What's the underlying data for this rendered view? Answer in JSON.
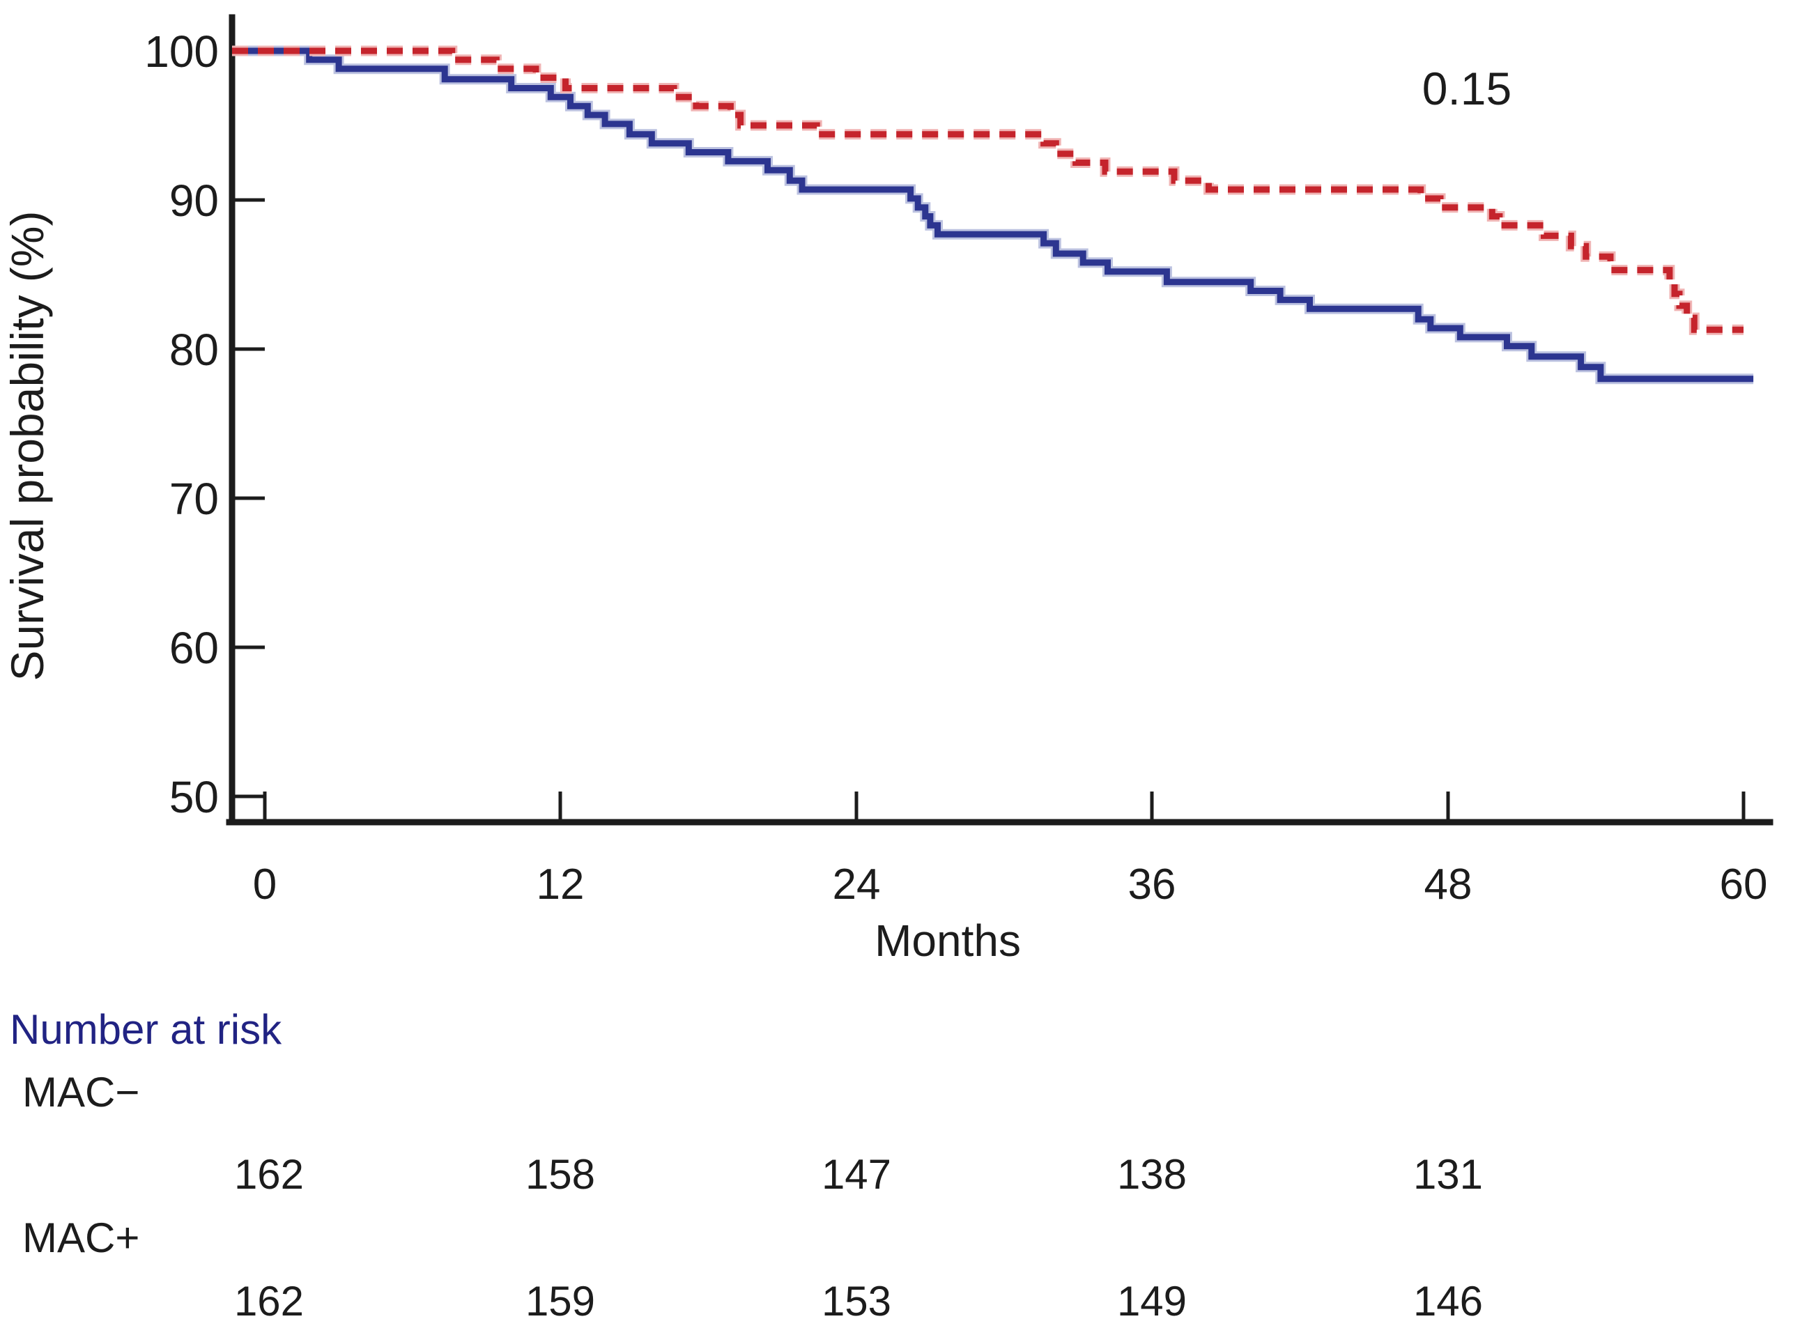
{
  "annotation": {
    "p_value": "0.15"
  },
  "y_axis": {
    "label": "Survival probability (%)",
    "ticks": [
      "100",
      "90",
      "80",
      "70",
      "60",
      "50"
    ]
  },
  "x_axis": {
    "label": "Months",
    "ticks": [
      "0",
      "12",
      "24",
      "36",
      "48",
      "60"
    ]
  },
  "risk_table": {
    "title": "Number at risk",
    "timepoints": [
      0,
      12,
      24,
      36,
      48
    ],
    "groups": [
      {
        "label": "MAC−",
        "values": [
          "162",
          "158",
          "147",
          "138",
          "131"
        ]
      },
      {
        "label": "MAC+",
        "values": [
          "162",
          "159",
          "153",
          "149",
          "146"
        ]
      }
    ]
  },
  "colors": {
    "mac_minus_curve": "#2c3590",
    "mac_plus_curve": "#c5242c",
    "risk_title_text": "#212383",
    "axis_text": "#1c1c1c"
  },
  "chart_data": {
    "type": "line",
    "subtype": "kaplan-meier-step",
    "title": "",
    "xlabel": "Months",
    "ylabel": "Survival probability (%)",
    "xlim": [
      0,
      60
    ],
    "ylim": [
      50,
      100
    ],
    "x_ticks": [
      0,
      12,
      24,
      36,
      48,
      60
    ],
    "y_ticks": [
      100,
      90,
      80,
      70,
      60,
      50
    ],
    "annotation": "0.15",
    "legend_position": "none",
    "grid": false,
    "series": [
      {
        "name": "MAC−",
        "style": "solid",
        "color": "#2c3590",
        "start": [
          0,
          100
        ],
        "end_month": 60.4,
        "drops": [
          [
            1.8,
            99.4
          ],
          [
            3.0,
            98.8
          ],
          [
            7.3,
            98.1
          ],
          [
            10.0,
            97.5
          ],
          [
            11.6,
            96.9
          ],
          [
            12.4,
            96.3
          ],
          [
            13.1,
            95.7
          ],
          [
            13.8,
            95.1
          ],
          [
            14.8,
            94.4
          ],
          [
            15.7,
            93.8
          ],
          [
            17.2,
            93.2
          ],
          [
            18.8,
            92.6
          ],
          [
            20.4,
            92.0
          ],
          [
            21.3,
            91.3
          ],
          [
            21.8,
            90.7
          ],
          [
            26.2,
            90.1
          ],
          [
            26.5,
            89.5
          ],
          [
            26.8,
            88.9
          ],
          [
            27.0,
            88.3
          ],
          [
            27.3,
            87.7
          ],
          [
            31.6,
            87.1
          ],
          [
            32.1,
            86.4
          ],
          [
            33.2,
            85.8
          ],
          [
            34.2,
            85.2
          ],
          [
            36.6,
            84.5
          ],
          [
            40.0,
            83.9
          ],
          [
            41.2,
            83.3
          ],
          [
            42.4,
            82.7
          ],
          [
            46.8,
            82.0
          ],
          [
            47.3,
            81.4
          ],
          [
            48.5,
            80.8
          ],
          [
            50.4,
            80.2
          ],
          [
            51.4,
            79.5
          ],
          [
            53.4,
            78.8
          ],
          [
            54.2,
            78.0
          ]
        ]
      },
      {
        "name": "MAC+",
        "style": "dashed",
        "color": "#c5242c",
        "start": [
          0,
          100
        ],
        "end_month": 60.0,
        "drops": [
          [
            7.6,
            99.4
          ],
          [
            9.4,
            98.8
          ],
          [
            11.0,
            98.2
          ],
          [
            12.2,
            97.5
          ],
          [
            16.6,
            96.9
          ],
          [
            17.5,
            96.3
          ],
          [
            18.9,
            95.7
          ],
          [
            19.3,
            95.0
          ],
          [
            22.4,
            94.4
          ],
          [
            31.6,
            93.8
          ],
          [
            32.1,
            93.1
          ],
          [
            32.9,
            92.5
          ],
          [
            34.1,
            91.9
          ],
          [
            36.9,
            91.3
          ],
          [
            38.3,
            90.7
          ],
          [
            46.9,
            90.1
          ],
          [
            47.7,
            89.5
          ],
          [
            49.8,
            88.9
          ],
          [
            50.1,
            88.3
          ],
          [
            51.9,
            87.6
          ],
          [
            53.0,
            86.9
          ],
          [
            53.6,
            86.2
          ],
          [
            54.6,
            85.3
          ],
          [
            57.0,
            84.5
          ],
          [
            57.2,
            83.7
          ],
          [
            57.4,
            82.9
          ],
          [
            57.7,
            82.1
          ],
          [
            58.0,
            81.3
          ]
        ]
      }
    ]
  }
}
